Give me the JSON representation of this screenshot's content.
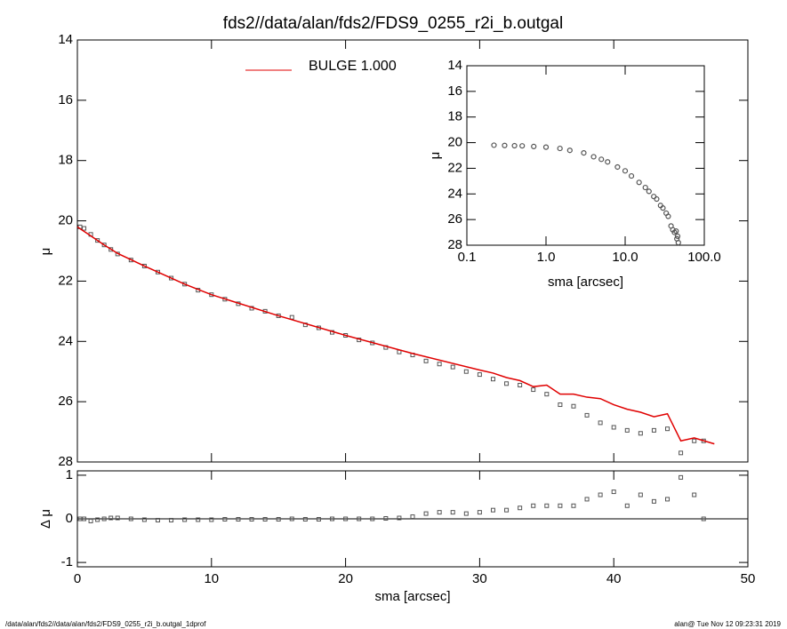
{
  "chart_data": [
    {
      "type": "line",
      "title": "fds2//data/alan/fds2/FDS9_0255_r2i_b.outgal",
      "ylabel": "μ",
      "xlim": [
        0,
        50
      ],
      "xticks": [
        0,
        10,
        20,
        30,
        40,
        50
      ],
      "xtick_labels": false,
      "ylim": [
        14,
        28
      ],
      "yticks": [
        14,
        16,
        18,
        20,
        22,
        24,
        26,
        28
      ],
      "y_inverted": true,
      "series": [
        {
          "marker": "square",
          "color": "#555555",
          "x": [
            0.2,
            0.5,
            1,
            1.5,
            2,
            2.5,
            3,
            4,
            5,
            6,
            7,
            8,
            9,
            10,
            11,
            12,
            13,
            14,
            15,
            16,
            17,
            18,
            19,
            20,
            21,
            22,
            23,
            24,
            25,
            26,
            27,
            28,
            29,
            30,
            31,
            32,
            33,
            34,
            35,
            36,
            37,
            38,
            39,
            40,
            41,
            42,
            43,
            44,
            45,
            46,
            46.7
          ],
          "values": [
            20.2,
            20.25,
            20.45,
            20.65,
            20.8,
            20.95,
            21.1,
            21.3,
            21.5,
            21.7,
            21.9,
            22.1,
            22.3,
            22.45,
            22.6,
            22.75,
            22.9,
            23.0,
            23.15,
            23.2,
            23.45,
            23.55,
            23.7,
            23.8,
            23.95,
            24.05,
            24.2,
            24.35,
            24.45,
            24.65,
            24.75,
            24.85,
            25.0,
            25.1,
            25.25,
            25.4,
            25.45,
            25.6,
            25.75,
            26.1,
            26.15,
            26.45,
            26.7,
            26.85,
            26.95,
            27.05,
            26.95,
            26.9,
            27.7,
            27.3,
            27.3
          ]
        },
        {
          "name": "BULGE  1.000",
          "color": "#e00000",
          "x": [
            0,
            1,
            2,
            3,
            5,
            8,
            10,
            15,
            20,
            25,
            30,
            31,
            32,
            33,
            34,
            35,
            36,
            37,
            38,
            39,
            40,
            41,
            42,
            43,
            44,
            45,
            46,
            47.5
          ],
          "values": [
            20.2,
            20.5,
            20.8,
            21.08,
            21.5,
            22.1,
            22.45,
            23.15,
            23.8,
            24.4,
            24.95,
            25.05,
            25.2,
            25.3,
            25.5,
            25.45,
            25.75,
            25.75,
            25.85,
            25.9,
            26.1,
            26.25,
            26.35,
            26.5,
            26.4,
            27.3,
            27.2,
            27.4
          ]
        }
      ]
    },
    {
      "type": "scatter",
      "ylabel": "Δ μ",
      "xlabel": "sma [arcsec]",
      "xlim": [
        0,
        50
      ],
      "xticks": [
        0,
        10,
        20,
        30,
        40,
        50
      ],
      "ylim": [
        -1.1,
        1.1
      ],
      "yticks": [
        -1,
        0,
        1
      ],
      "zero_line": true,
      "series": [
        {
          "marker": "square",
          "color": "#555555",
          "x": [
            0.2,
            0.5,
            1,
            1.5,
            2,
            2.5,
            3,
            4,
            5,
            6,
            7,
            8,
            9,
            10,
            11,
            12,
            13,
            14,
            15,
            16,
            17,
            18,
            19,
            20,
            21,
            22,
            23,
            24,
            25,
            26,
            27,
            28,
            29,
            30,
            31,
            32,
            33,
            34,
            35,
            36,
            37,
            38,
            39,
            40,
            41,
            42,
            43,
            44,
            45,
            46,
            46.7
          ],
          "values": [
            0,
            0,
            -0.05,
            -0.02,
            0,
            0.02,
            0.02,
            0,
            -0.02,
            -0.03,
            -0.03,
            -0.02,
            -0.02,
            -0.02,
            -0.01,
            -0.01,
            -0.01,
            -0.01,
            -0.01,
            0,
            -0.01,
            -0.01,
            0,
            0,
            0,
            0,
            0.01,
            0.02,
            0.05,
            0.12,
            0.15,
            0.15,
            0.12,
            0.15,
            0.2,
            0.2,
            0.25,
            0.3,
            0.3,
            0.3,
            0.3,
            0.45,
            0.55,
            0.62,
            0.3,
            0.55,
            0.4,
            0.45,
            0.95,
            0.55,
            0
          ]
        }
      ]
    },
    {
      "type": "scatter",
      "ylabel": "μ",
      "xlabel": "sma [arcsec]",
      "xlog": true,
      "xlim": [
        0.1,
        100
      ],
      "xticks": [
        {
          "value": 0.1,
          "label": "0.1"
        },
        {
          "value": 1,
          "label": "1.0"
        },
        {
          "value": 10,
          "label": "10.0"
        },
        {
          "value": 100,
          "label": "100.0"
        }
      ],
      "ylim": [
        14,
        28
      ],
      "yticks": [
        14,
        16,
        18,
        20,
        22,
        24,
        26,
        28
      ],
      "y_inverted": true,
      "series": [
        {
          "marker": "circle",
          "color": "#555555",
          "x": [
            0.22,
            0.3,
            0.4,
            0.5,
            0.7,
            1,
            1.5,
            2,
            3,
            4,
            5,
            6,
            8,
            10,
            12,
            15,
            18,
            20,
            23,
            25,
            28,
            30,
            33,
            35,
            38,
            40,
            42,
            44,
            45,
            46,
            47
          ],
          "values": [
            20.2,
            20.22,
            20.24,
            20.25,
            20.3,
            20.35,
            20.45,
            20.6,
            20.8,
            21.1,
            21.3,
            21.5,
            21.9,
            22.2,
            22.6,
            23.1,
            23.5,
            23.8,
            24.2,
            24.4,
            24.9,
            25.1,
            25.5,
            25.75,
            26.5,
            26.8,
            27.0,
            26.9,
            27.5,
            27.3,
            27.8
          ]
        }
      ]
    }
  ],
  "footer": {
    "left": "/data/alan/fds2//data/alan/fds2/FDS9_0255_r2i_b.outgal_1dprof",
    "right": "alan@  Tue Nov 12 09:23:31 2019"
  }
}
